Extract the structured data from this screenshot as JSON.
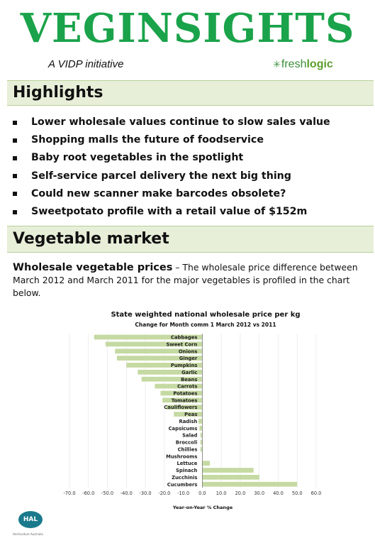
{
  "header": {
    "title": "VEGINSIGHTS",
    "subtitle": "A VIDP initiative",
    "logo_fresh": "fresh",
    "logo_logic": "logic",
    "brand_color": "#1aa34a"
  },
  "highlights": {
    "heading": "Highlights",
    "items": [
      "Lower wholesale values continue to slow sales value",
      "Shopping malls the future of foodservice",
      "Baby root vegetables in the spotlight",
      "Self-service parcel delivery the next big thing",
      "Could new scanner make barcodes obsolete?",
      "Sweetpotato profile with a retail value of $152m"
    ]
  },
  "market": {
    "heading": "Vegetable market",
    "lead": "Wholesale vegetable prices",
    "body": " – The wholesale price difference between March 2012 and March 2011 for the major vegetables is profiled in the chart below."
  },
  "chart_data": {
    "type": "bar",
    "orientation": "horizontal",
    "title": "State weighted national wholesale price per kg",
    "subtitle": "Change for Month comm 1 March 2012 vs 2011",
    "xlabel": "Year-on-Year % Change",
    "xlim": [
      -70,
      60
    ],
    "xticks": [
      "-70.0",
      "-60.0",
      "-50.0",
      "-40.0",
      "-30.0",
      "-20.0",
      "-10.0",
      "0.0",
      "10.0",
      "20.0",
      "30.0",
      "40.0",
      "50.0",
      "60.0"
    ],
    "xtick_values": [
      -70,
      -60,
      -50,
      -40,
      -30,
      -20,
      -10,
      0,
      10,
      20,
      30,
      40,
      50,
      60
    ],
    "bar_color": "#c5d9a2",
    "grid": "vertical",
    "categories": [
      "Cabbages",
      "Sweet Corn",
      "Onions",
      "Ginger",
      "Pumpkins",
      "Garlic",
      "Beans",
      "Carrots",
      "Potatoes",
      "Tomatoes",
      "Cauliflowers",
      "Peas",
      "Radish",
      "Capsicums",
      "Salad",
      "Broccoli",
      "Chillies",
      "Mushrooms",
      "Lettuce",
      "Spinach",
      "Zucchinis",
      "Cucumbers"
    ],
    "values": [
      -57,
      -51,
      -46,
      -45,
      -40,
      -34,
      -32,
      -25,
      -22,
      -21,
      -19,
      -15,
      -2,
      -1.5,
      -1,
      -1,
      -1,
      0,
      4,
      27,
      30,
      50
    ]
  },
  "footer": {
    "logo_text": "HAL",
    "logo_caption": "Horticulture Australia"
  }
}
